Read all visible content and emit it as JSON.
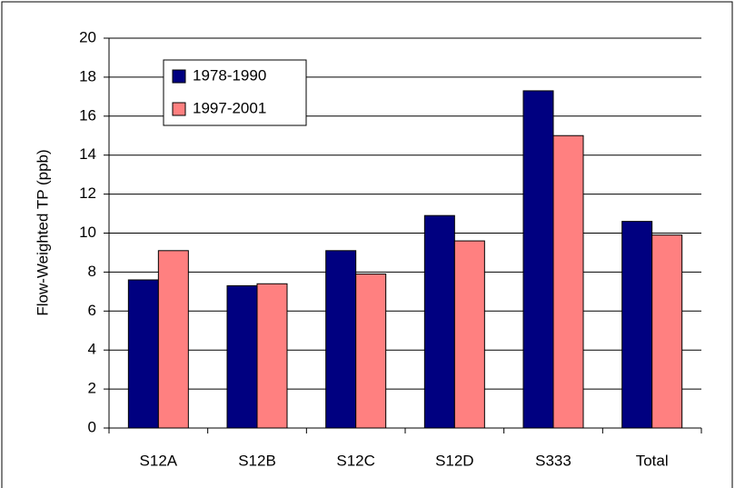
{
  "chart_data": {
    "type": "bar",
    "y_label": "Flow-Weighted TP (ppb)",
    "categories": [
      "S12A",
      "S12B",
      "S12C",
      "S12D",
      "S333",
      "Total"
    ],
    "series": [
      {
        "name": "1978-1990",
        "color": "#000080",
        "values": [
          7.6,
          7.3,
          9.1,
          10.9,
          17.3,
          10.6
        ]
      },
      {
        "name": "1997-2001",
        "color": "#ff8080",
        "values": [
          9.1,
          7.4,
          7.9,
          9.6,
          15.0,
          9.9
        ]
      }
    ],
    "ylim": [
      0,
      20
    ],
    "yticks": [
      0,
      2,
      4,
      6,
      8,
      10,
      12,
      14,
      16,
      18,
      20
    ],
    "grid": true,
    "legend": "top-left"
  }
}
